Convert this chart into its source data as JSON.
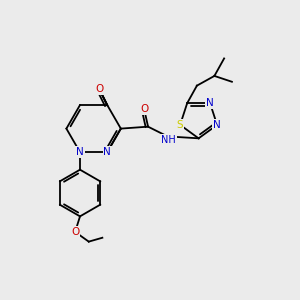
{
  "bg_color": "#ebebeb",
  "atom_colors": {
    "C": "#000000",
    "N": "#0000cc",
    "O": "#cc0000",
    "S": "#cccc00",
    "H": "#000000"
  },
  "bond_color": "#000000",
  "font_size": 7.5,
  "fig_size": [
    3.0,
    3.0
  ],
  "dpi": 100
}
